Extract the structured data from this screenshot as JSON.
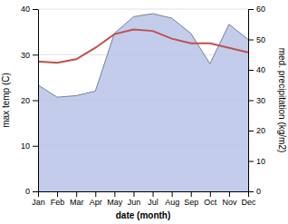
{
  "chart_data": {
    "type": "line",
    "x_label": "date (month)",
    "y_label": "max temp (C)",
    "y2_label": "med. precipitation (kg/m2)",
    "categories": [
      "Jan",
      "Feb",
      "Mar",
      "Apr",
      "May",
      "Jun",
      "Jul",
      "Aug",
      "Sep",
      "Oct",
      "Nov",
      "Dec"
    ],
    "series": [
      {
        "type": "line",
        "axis": "y",
        "color": "#c0504d",
        "values": [
          28.5,
          28.2,
          29.0,
          31.5,
          34.5,
          35.5,
          35.2,
          33.5,
          32.5,
          32.5,
          31.5,
          30.5
        ]
      },
      {
        "type": "area",
        "axis": "y2",
        "color": "#b8c4e8",
        "values": [
          35.0,
          31.0,
          31.5,
          33.0,
          52.0,
          57.5,
          58.5,
          57.0,
          52.0,
          42.0,
          55.0,
          50.0
        ]
      }
    ],
    "ylim": [
      0,
      40
    ],
    "yticks": [
      0,
      10,
      20,
      30,
      40
    ],
    "y2lim": [
      0,
      60
    ],
    "y2ticks": [
      0,
      10,
      20,
      30,
      40,
      50,
      60
    ],
    "grid": true
  }
}
